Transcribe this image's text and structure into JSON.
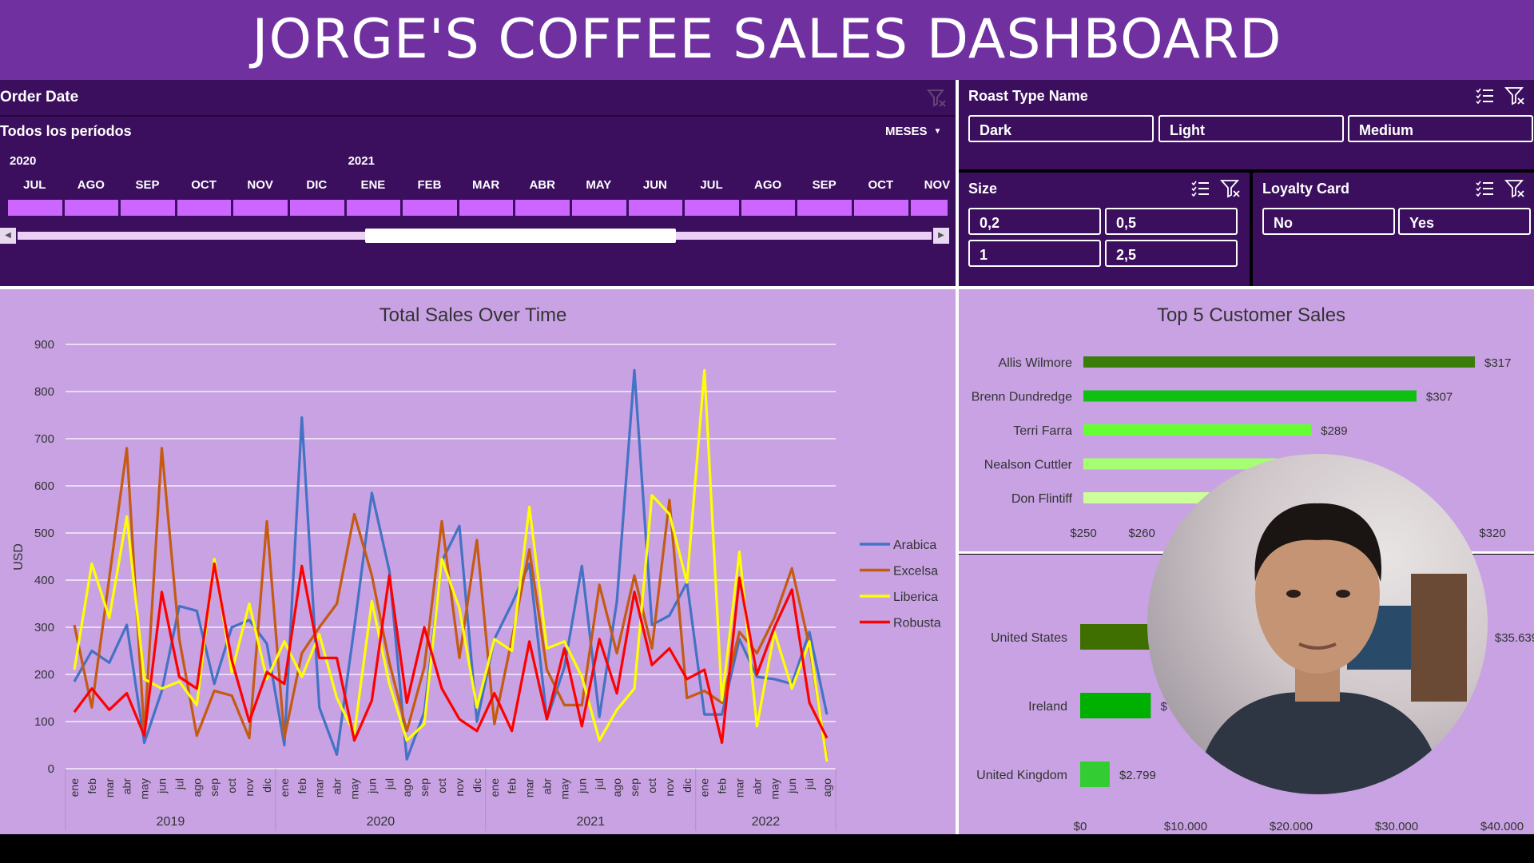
{
  "title": "JORGE'S COFFEE SALES DASHBOARD",
  "order_date": {
    "title": "Order Date",
    "period_label": "Todos los períodos",
    "level": "MESES",
    "years": [
      {
        "label": "2020",
        "month_index": 0
      },
      {
        "label": "2021",
        "month_index": 6
      }
    ],
    "months": [
      "JUL",
      "AGO",
      "SEP",
      "OCT",
      "NOV",
      "DIC",
      "ENE",
      "FEB",
      "MAR",
      "ABR",
      "MAY",
      "JUN",
      "JUL",
      "AGO",
      "SEP",
      "OCT",
      "NOV"
    ],
    "scroll_fraction": {
      "start": 0.38,
      "end": 0.72
    }
  },
  "roast_slicer": {
    "title": "Roast Type Name",
    "items": [
      "Dark",
      "Light",
      "Medium"
    ]
  },
  "size_slicer": {
    "title": "Size",
    "items": [
      "0,2",
      "0,5",
      "1",
      "2,5"
    ]
  },
  "loyalty_slicer": {
    "title": "Loyalty Card",
    "items": [
      "No",
      "Yes"
    ]
  },
  "chart_data": [
    {
      "type": "line",
      "title": "Total Sales Over Time",
      "ylabel": "USD",
      "ylim": [
        0,
        900
      ],
      "yticks": [
        0,
        100,
        200,
        300,
        400,
        500,
        600,
        700,
        800,
        900
      ],
      "legend_position": "right",
      "years": [
        "2019",
        "2020",
        "2021",
        "2022"
      ],
      "categories": [
        "ene",
        "feb",
        "mar",
        "abr",
        "may",
        "jun",
        "jul",
        "ago",
        "sep",
        "oct",
        "nov",
        "dic",
        "ene",
        "feb",
        "mar",
        "abr",
        "may",
        "jun",
        "jul",
        "ago",
        "sep",
        "oct",
        "nov",
        "dic",
        "ene",
        "feb",
        "mar",
        "abr",
        "may",
        "jun",
        "jul",
        "ago",
        "sep",
        "oct",
        "nov",
        "dic",
        "ene",
        "feb",
        "mar",
        "abr",
        "may",
        "jun",
        "jul",
        "ago"
      ],
      "series": [
        {
          "name": "Arabica",
          "color": "#4472c4",
          "values": [
            185,
            250,
            225,
            305,
            55,
            165,
            345,
            335,
            180,
            300,
            315,
            265,
            50,
            745,
            130,
            30,
            300,
            585,
            420,
            20,
            120,
            440,
            515,
            100,
            275,
            350,
            435,
            105,
            215,
            430,
            110,
            355,
            845,
            305,
            325,
            395,
            115,
            115,
            275,
            195,
            190,
            180,
            290,
            115
          ]
        },
        {
          "name": "Excelsa",
          "color": "#c55a11",
          "values": [
            305,
            130,
            405,
            680,
            75,
            680,
            275,
            70,
            165,
            155,
            65,
            525,
            65,
            245,
            300,
            350,
            540,
            410,
            225,
            80,
            215,
            525,
            235,
            485,
            95,
            275,
            465,
            210,
            135,
            135,
            390,
            245,
            410,
            255,
            570,
            150,
            165,
            140,
            290,
            245,
            320,
            425,
            260,
            20
          ]
        },
        {
          "name": "Liberica",
          "color": "#ffff00",
          "values": [
            210,
            435,
            320,
            535,
            190,
            170,
            185,
            135,
            445,
            205,
            350,
            190,
            270,
            195,
            285,
            150,
            75,
            355,
            180,
            60,
            95,
            445,
            340,
            130,
            275,
            250,
            555,
            255,
            270,
            195,
            60,
            125,
            170,
            580,
            540,
            395,
            845,
            145,
            460,
            90,
            290,
            170,
            270,
            15
          ]
        },
        {
          "name": "Robusta",
          "color": "#ff0000",
          "values": [
            120,
            170,
            125,
            160,
            70,
            375,
            195,
            170,
            435,
            230,
            100,
            205,
            180,
            430,
            235,
            235,
            60,
            145,
            410,
            140,
            300,
            170,
            105,
            80,
            160,
            80,
            270,
            105,
            255,
            90,
            275,
            160,
            375,
            220,
            255,
            190,
            210,
            55,
            405,
            200,
            300,
            380,
            140,
            65
          ]
        }
      ]
    },
    {
      "type": "bar",
      "title": "Top 5 Customer Sales",
      "categories": [
        "Allis Wilmore",
        "Brenn Dundredge",
        "Terri Farra",
        "Nealson Cuttler",
        "Don Flintiff"
      ],
      "values": [
        317,
        307,
        289,
        283,
        279
      ],
      "value_labels": [
        "$317",
        "$307",
        "$289",
        "",
        ""
      ],
      "colors": [
        "#3a7d0a",
        "#10c010",
        "#66ff33",
        "#a6ff73",
        "#ccff99"
      ],
      "xlim": [
        250,
        320
      ],
      "xticks": [
        "$250",
        "$260",
        "$320"
      ]
    },
    {
      "type": "bar",
      "title": "",
      "categories": [
        "United States",
        "Ireland",
        "United Kingdom"
      ],
      "values": [
        35639,
        6700,
        2799
      ],
      "value_labels": [
        "$35.639",
        "$",
        "$2.799"
      ],
      "colors": [
        "#3f6f00",
        "#00b000",
        "#33cc33"
      ],
      "xlim": [
        0,
        40000
      ],
      "xticks": [
        "$0",
        "$10.000",
        "$20.000",
        "$30.000",
        "$40.000"
      ]
    }
  ]
}
